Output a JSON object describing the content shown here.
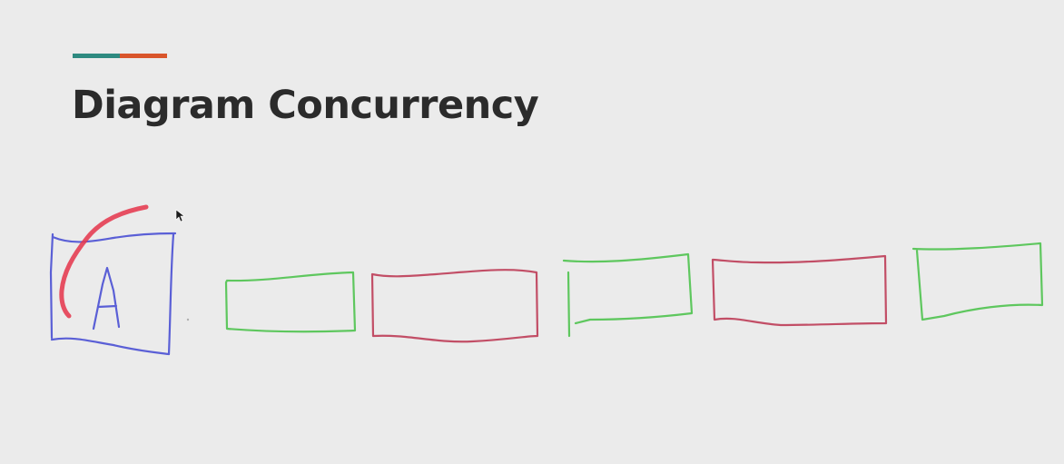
{
  "slide": {
    "title": "Diagram Concurrency"
  },
  "colors": {
    "background": "#ebebeb",
    "title": "#2b2b2b",
    "accent_teal": "#2e8a80",
    "accent_orange": "#d9552b",
    "pen_blue": "#5a5fd6",
    "pen_green": "#5ec75e",
    "pen_red": "#c24e66",
    "highlighter_red": "#e5394f"
  },
  "diagram": {
    "boxes": [
      {
        "color": "pen_blue",
        "label": "A"
      },
      {
        "color": "pen_green",
        "label": ""
      },
      {
        "color": "pen_red",
        "label": ""
      },
      {
        "color": "pen_green",
        "label": ""
      },
      {
        "color": "pen_red",
        "label": ""
      },
      {
        "color": "pen_green",
        "label": ""
      }
    ],
    "annotation": {
      "shape": "arc",
      "color": "highlighter_red"
    },
    "cursor": {
      "icon": "mouse-pointer-icon"
    }
  }
}
